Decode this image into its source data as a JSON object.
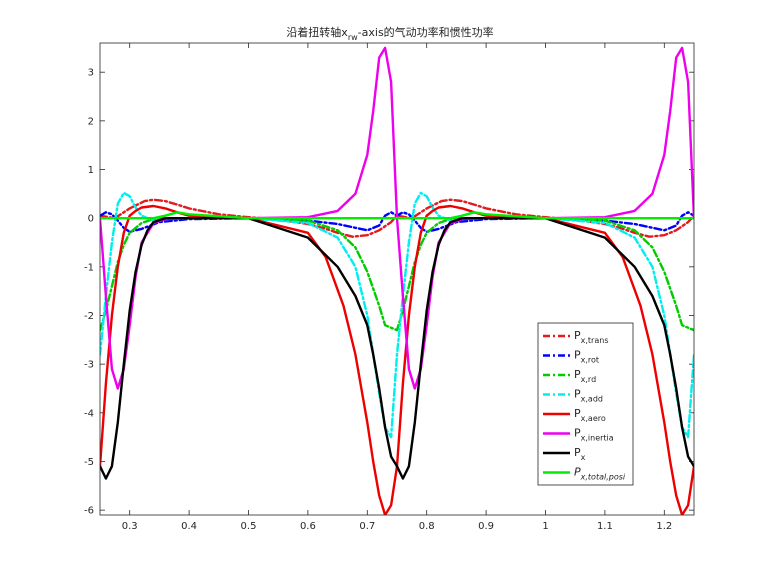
{
  "chart_data": {
    "type": "line",
    "title": {
      "pre": "沿着扭转轴x",
      "sub": "rw",
      "post": "-axis的气动功率和惯性功率"
    },
    "xlabel": "",
    "ylabel": "",
    "xlim": [
      0.25,
      1.25
    ],
    "ylim": [
      -6.1,
      3.6
    ],
    "xticks": [
      0.3,
      0.4,
      0.5,
      0.6,
      0.7,
      0.8,
      0.9,
      1,
      1.1,
      1.2
    ],
    "yticks": [
      -6,
      -5,
      -4,
      -3,
      -2,
      -1,
      0,
      1,
      2,
      3
    ],
    "grid": false,
    "legend_position": "bottom-right",
    "series": [
      {
        "name": {
          "main": "P",
          "sub": "x,trans"
        },
        "color": "#e41a1c",
        "style": "dashdot",
        "x": [
          0.25,
          0.275,
          0.3,
          0.325,
          0.34,
          0.36,
          0.38,
          0.4,
          0.45,
          0.5,
          0.55,
          0.6,
          0.625,
          0.65,
          0.675,
          0.7,
          0.72,
          0.74,
          0.75,
          0.775,
          0.8,
          0.825,
          0.84,
          0.86,
          0.88,
          0.9,
          0.95,
          1.0,
          1.05,
          1.1,
          1.125,
          1.15,
          1.175,
          1.2,
          1.22,
          1.24,
          1.25
        ],
        "y": [
          0.05,
          0.0,
          0.2,
          0.35,
          0.38,
          0.35,
          0.28,
          0.2,
          0.08,
          0.02,
          -0.03,
          -0.12,
          -0.2,
          -0.3,
          -0.38,
          -0.35,
          -0.25,
          -0.08,
          0.05,
          0.0,
          0.2,
          0.35,
          0.38,
          0.35,
          0.28,
          0.2,
          0.08,
          0.02,
          -0.03,
          -0.12,
          -0.2,
          -0.3,
          -0.38,
          -0.35,
          -0.25,
          -0.08,
          0.05
        ]
      },
      {
        "name": {
          "main": "P",
          "sub": "x,rot"
        },
        "color": "#0000ff",
        "style": "dashdot",
        "x": [
          0.25,
          0.26,
          0.27,
          0.28,
          0.29,
          0.3,
          0.32,
          0.35,
          0.4,
          0.5,
          0.6,
          0.65,
          0.7,
          0.72,
          0.73,
          0.74,
          0.75,
          0.76,
          0.77,
          0.78,
          0.79,
          0.8,
          0.82,
          0.85,
          0.9,
          1.0,
          1.1,
          1.15,
          1.2,
          1.22,
          1.23,
          1.24,
          1.25
        ],
        "y": [
          0.05,
          0.12,
          0.08,
          -0.05,
          -0.2,
          -0.28,
          -0.22,
          -0.08,
          -0.02,
          0.0,
          -0.05,
          -0.12,
          -0.25,
          -0.15,
          0.05,
          0.12,
          0.05,
          0.12,
          0.08,
          -0.05,
          -0.2,
          -0.28,
          -0.22,
          -0.08,
          -0.02,
          0.0,
          -0.05,
          -0.12,
          -0.25,
          -0.15,
          0.05,
          0.12,
          0.05
        ]
      },
      {
        "name": {
          "main": "P",
          "sub": "x,rd"
        },
        "color": "#00cc00",
        "style": "dashdot",
        "x": [
          0.25,
          0.26,
          0.27,
          0.28,
          0.29,
          0.3,
          0.32,
          0.34,
          0.36,
          0.4,
          0.5,
          0.6,
          0.65,
          0.68,
          0.7,
          0.72,
          0.73,
          0.74,
          0.75,
          0.76,
          0.77,
          0.78,
          0.79,
          0.8,
          0.82,
          0.84,
          0.86,
          0.9,
          1.0,
          1.1,
          1.15,
          1.18,
          1.2,
          1.22,
          1.23,
          1.24,
          1.25
        ],
        "y": [
          -2.3,
          -1.9,
          -1.4,
          -0.9,
          -0.55,
          -0.3,
          -0.1,
          -0.02,
          0.0,
          0.0,
          0.0,
          -0.05,
          -0.25,
          -0.6,
          -1.1,
          -1.8,
          -2.2,
          -2.25,
          -2.3,
          -1.9,
          -1.4,
          -0.9,
          -0.55,
          -0.3,
          -0.1,
          -0.02,
          0.0,
          0.0,
          0.0,
          -0.05,
          -0.25,
          -0.6,
          -1.1,
          -1.8,
          -2.2,
          -2.25,
          -2.3
        ]
      },
      {
        "name": {
          "main": "P",
          "sub": "x,add"
        },
        "color": "#00eeee",
        "style": "dashdot",
        "x": [
          0.25,
          0.26,
          0.27,
          0.28,
          0.29,
          0.3,
          0.31,
          0.32,
          0.34,
          0.36,
          0.4,
          0.5,
          0.6,
          0.65,
          0.68,
          0.7,
          0.72,
          0.73,
          0.74,
          0.75,
          0.76,
          0.77,
          0.78,
          0.79,
          0.8,
          0.81,
          0.82,
          0.84,
          0.86,
          0.9,
          1.0,
          1.1,
          1.15,
          1.18,
          1.2,
          1.22,
          1.23,
          1.24,
          1.25
        ],
        "y": [
          -2.8,
          -1.6,
          -0.5,
          0.3,
          0.52,
          0.45,
          0.22,
          0.05,
          -0.05,
          -0.02,
          0.0,
          0.0,
          -0.1,
          -0.4,
          -1.0,
          -2.0,
          -3.6,
          -4.3,
          -4.5,
          -2.8,
          -1.6,
          -0.5,
          0.3,
          0.52,
          0.45,
          0.22,
          0.05,
          -0.05,
          -0.02,
          0.0,
          0.0,
          -0.1,
          -0.4,
          -1.0,
          -2.0,
          -3.6,
          -4.3,
          -4.5,
          -2.8
        ]
      },
      {
        "name": {
          "main": "P",
          "sub": "x,aero"
        },
        "color": "#ee0000",
        "style": "solid",
        "x": [
          0.25,
          0.26,
          0.27,
          0.28,
          0.29,
          0.3,
          0.31,
          0.32,
          0.34,
          0.36,
          0.38,
          0.4,
          0.5,
          0.6,
          0.63,
          0.66,
          0.68,
          0.7,
          0.71,
          0.72,
          0.73,
          0.74,
          0.75,
          0.76,
          0.77,
          0.78,
          0.79,
          0.8,
          0.81,
          0.82,
          0.84,
          0.86,
          0.88,
          0.9,
          1.0,
          1.1,
          1.13,
          1.16,
          1.18,
          1.2,
          1.21,
          1.22,
          1.23,
          1.24,
          1.25
        ],
        "y": [
          -5.1,
          -3.4,
          -2.0,
          -1.0,
          -0.3,
          0.05,
          0.15,
          0.22,
          0.25,
          0.2,
          0.12,
          0.05,
          0.0,
          -0.3,
          -0.8,
          -1.8,
          -2.8,
          -4.2,
          -5.0,
          -5.7,
          -6.1,
          -5.9,
          -5.1,
          -3.4,
          -2.0,
          -1.0,
          -0.3,
          0.05,
          0.15,
          0.22,
          0.25,
          0.2,
          0.12,
          0.05,
          0.0,
          -0.3,
          -0.8,
          -1.8,
          -2.8,
          -4.2,
          -5.0,
          -5.7,
          -6.1,
          -5.9,
          -5.1
        ]
      },
      {
        "name": {
          "main": "P",
          "sub": "x,inertia"
        },
        "color": "#ee00ee",
        "style": "solid",
        "x": [
          0.25,
          0.26,
          0.27,
          0.28,
          0.29,
          0.3,
          0.31,
          0.32,
          0.34,
          0.36,
          0.4,
          0.5,
          0.6,
          0.65,
          0.68,
          0.7,
          0.71,
          0.72,
          0.73,
          0.74,
          0.75,
          0.76,
          0.77,
          0.78,
          0.79,
          0.8,
          0.81,
          0.82,
          0.84,
          0.86,
          0.9,
          1.0,
          1.1,
          1.15,
          1.18,
          1.2,
          1.21,
          1.22,
          1.23,
          1.24,
          1.25
        ],
        "y": [
          0.0,
          -1.6,
          -3.1,
          -3.5,
          -3.1,
          -2.2,
          -1.2,
          -0.5,
          -0.1,
          -0.02,
          0.0,
          0.0,
          0.02,
          0.15,
          0.5,
          1.3,
          2.2,
          3.3,
          3.5,
          2.8,
          0.0,
          -1.6,
          -3.1,
          -3.5,
          -3.1,
          -2.2,
          -1.2,
          -0.5,
          -0.1,
          -0.02,
          0.0,
          0.0,
          0.02,
          0.15,
          0.5,
          1.3,
          2.2,
          3.3,
          3.5,
          2.8,
          0.0
        ]
      },
      {
        "name": {
          "main": "P",
          "sub": "x"
        },
        "color": "#000000",
        "style": "solid",
        "x": [
          0.25,
          0.26,
          0.27,
          0.28,
          0.29,
          0.3,
          0.31,
          0.32,
          0.33,
          0.34,
          0.36,
          0.38,
          0.4,
          0.5,
          0.6,
          0.65,
          0.68,
          0.7,
          0.71,
          0.72,
          0.73,
          0.74,
          0.75,
          0.76,
          0.77,
          0.78,
          0.79,
          0.8,
          0.81,
          0.82,
          0.83,
          0.84,
          0.86,
          0.88,
          0.9,
          1.0,
          1.1,
          1.15,
          1.18,
          1.2,
          1.21,
          1.22,
          1.23,
          1.24,
          1.25
        ],
        "y": [
          -5.1,
          -5.35,
          -5.1,
          -4.2,
          -3.0,
          -1.9,
          -1.1,
          -0.55,
          -0.25,
          -0.08,
          0.0,
          0.0,
          0.0,
          0.0,
          -0.4,
          -1.0,
          -1.6,
          -2.2,
          -2.8,
          -3.5,
          -4.3,
          -4.9,
          -5.1,
          -5.35,
          -5.1,
          -4.2,
          -3.0,
          -1.9,
          -1.1,
          -0.55,
          -0.25,
          -0.08,
          0.0,
          0.0,
          0.0,
          0.0,
          -0.4,
          -1.0,
          -1.6,
          -2.2,
          -2.8,
          -3.5,
          -4.3,
          -4.9,
          -5.1
        ]
      },
      {
        "name": {
          "main": "P",
          "sub": "x,total,posi",
          "italic": true
        },
        "color": "#00ee00",
        "style": "solid",
        "x": [
          0.25,
          0.34,
          0.36,
          0.38,
          0.4,
          0.5,
          0.6,
          0.7,
          0.8,
          0.84,
          0.86,
          0.88,
          0.9,
          1.0,
          1.1,
          1.2,
          1.25
        ],
        "y": [
          0.0,
          0.0,
          0.05,
          0.12,
          0.08,
          0.0,
          0.0,
          0.0,
          0.0,
          0.0,
          0.05,
          0.12,
          0.08,
          0.0,
          0.0,
          0.0,
          0.0
        ]
      }
    ]
  }
}
